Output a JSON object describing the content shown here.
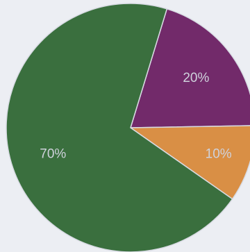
{
  "chart_data": {
    "type": "pie",
    "title": "",
    "legend": "none",
    "slices": [
      {
        "label": "20%",
        "value": 20,
        "color": "#722a6a"
      },
      {
        "label": "10%",
        "value": 10,
        "color": "#d98f45"
      },
      {
        "label": "70%",
        "value": 70,
        "color": "#3a6f3e"
      }
    ]
  }
}
